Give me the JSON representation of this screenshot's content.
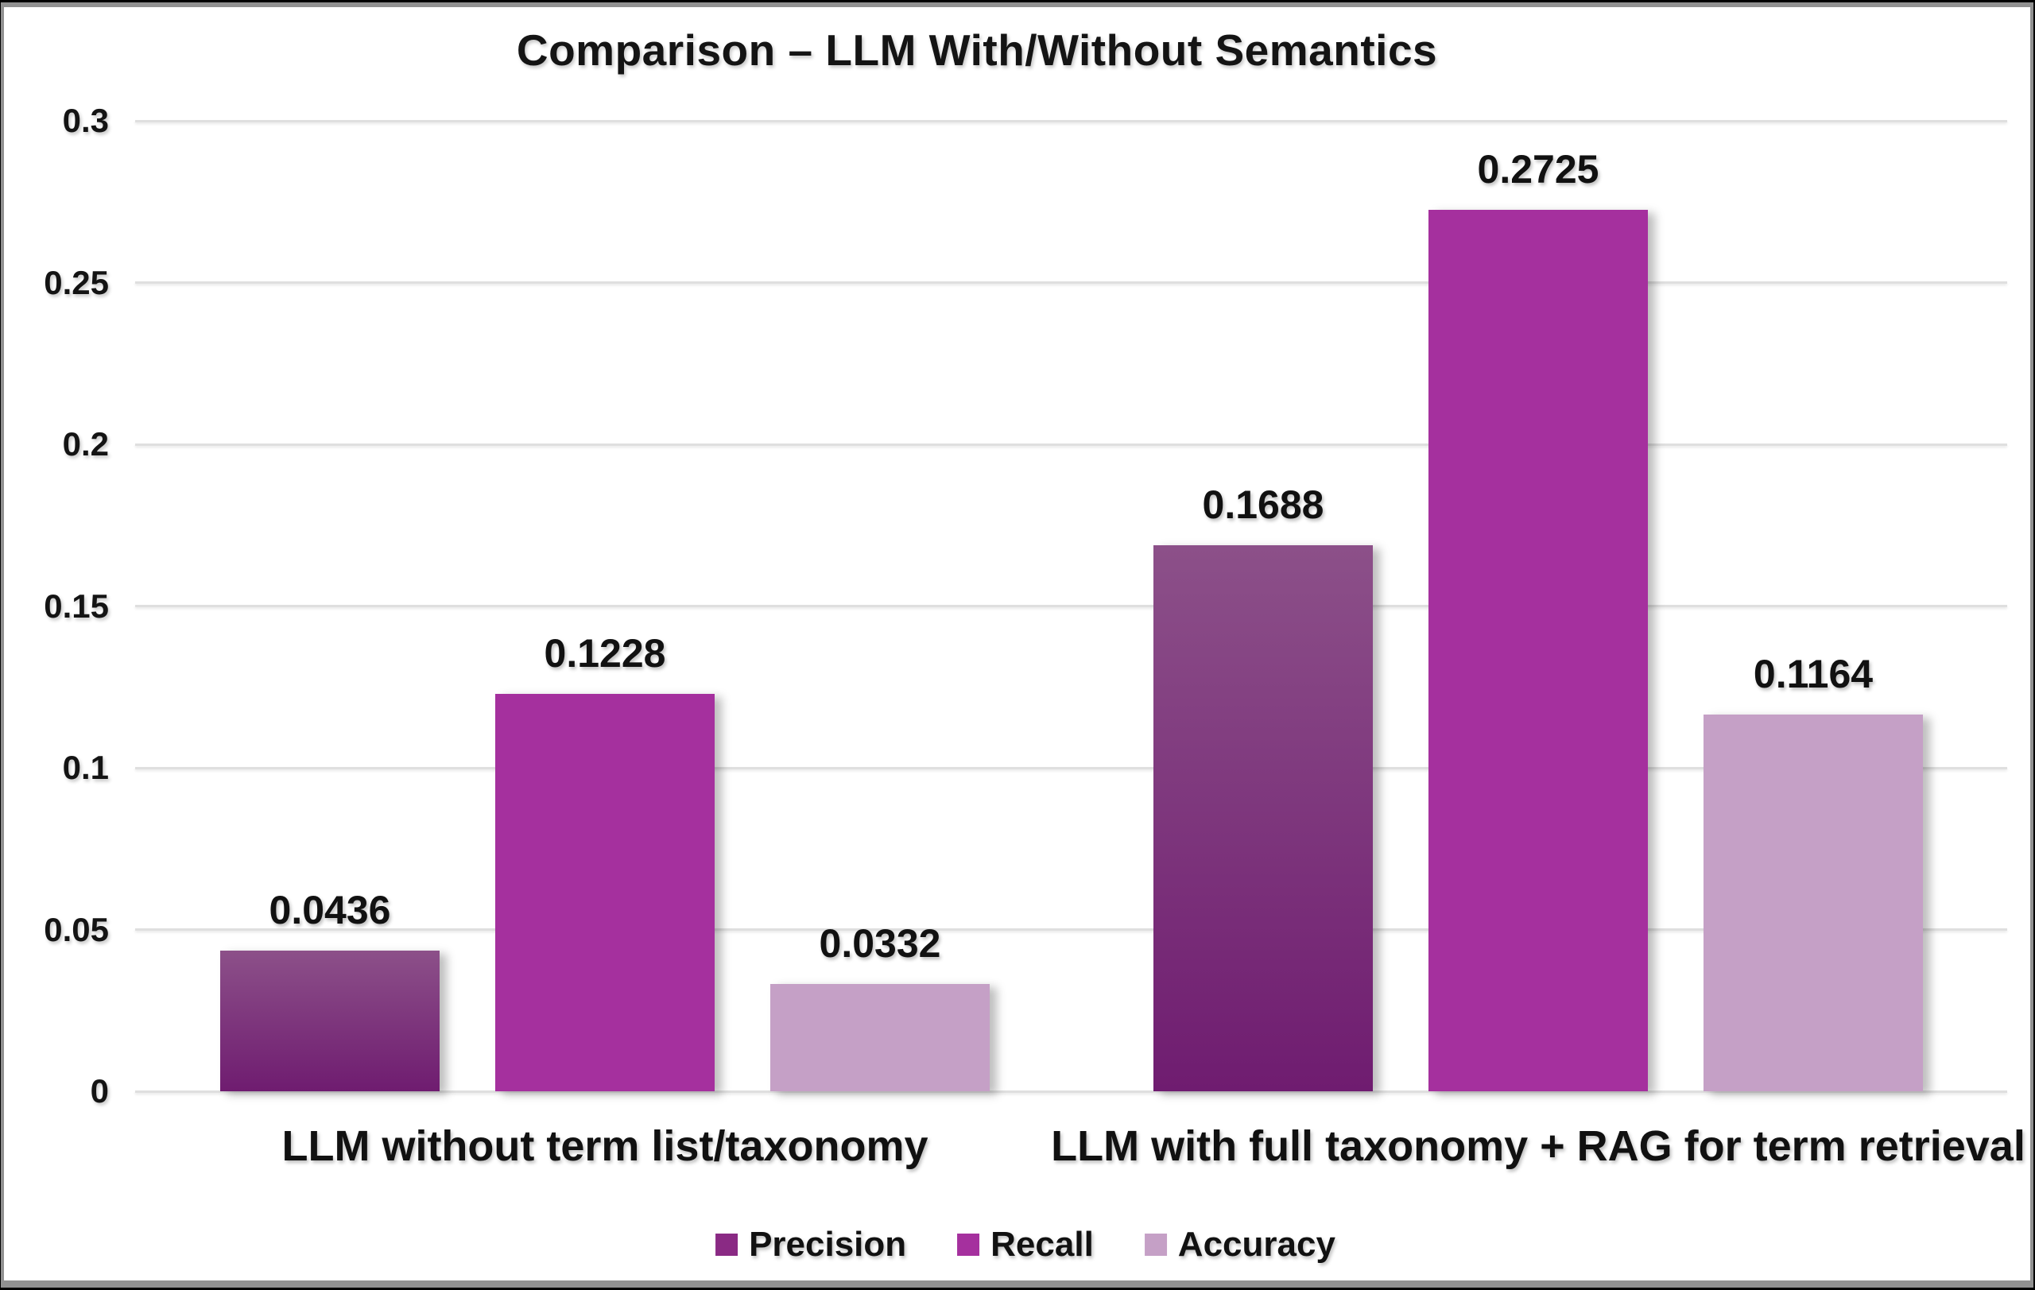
{
  "window": {
    "background": "#ffffff",
    "frame_color": "#919191",
    "outer_border_color": "#000000"
  },
  "chart_data": {
    "type": "bar",
    "title": "Comparison – LLM With/Without Semantics",
    "categories": [
      "LLM without term list/taxonomy",
      "LLM with full taxonomy + RAG for term retrieval"
    ],
    "series": [
      {
        "name": "Precision",
        "values": [
          0.0436,
          0.1688
        ],
        "labels": [
          "0.0436",
          "0.1688"
        ],
        "color": "#8a2a84",
        "gradient": [
          "#8c5089",
          "#6f1c70"
        ]
      },
      {
        "name": "Recall",
        "values": [
          0.1228,
          0.2725
        ],
        "labels": [
          "0.1228",
          "0.2725"
        ],
        "color": "#a5309e"
      },
      {
        "name": "Accuracy",
        "values": [
          0.0332,
          0.1164
        ],
        "labels": [
          "0.0332",
          "0.1164"
        ],
        "color": "#c5a0c6"
      }
    ],
    "xlabel": "",
    "ylabel": "",
    "ylim": [
      0,
      0.3
    ],
    "yticks": [
      {
        "label": "0.3",
        "value": 0.3
      },
      {
        "label": "0.25",
        "value": 0.25
      },
      {
        "label": "0.2",
        "value": 0.2
      },
      {
        "label": "0.15",
        "value": 0.15
      },
      {
        "label": "0.1",
        "value": 0.1
      },
      {
        "label": "0.05",
        "value": 0.05
      },
      {
        "label": "0",
        "value": 0
      }
    ],
    "grid": true,
    "legend_position": "bottom",
    "colors": {
      "text": "#141414",
      "gridline": "#dfdfdf"
    }
  }
}
